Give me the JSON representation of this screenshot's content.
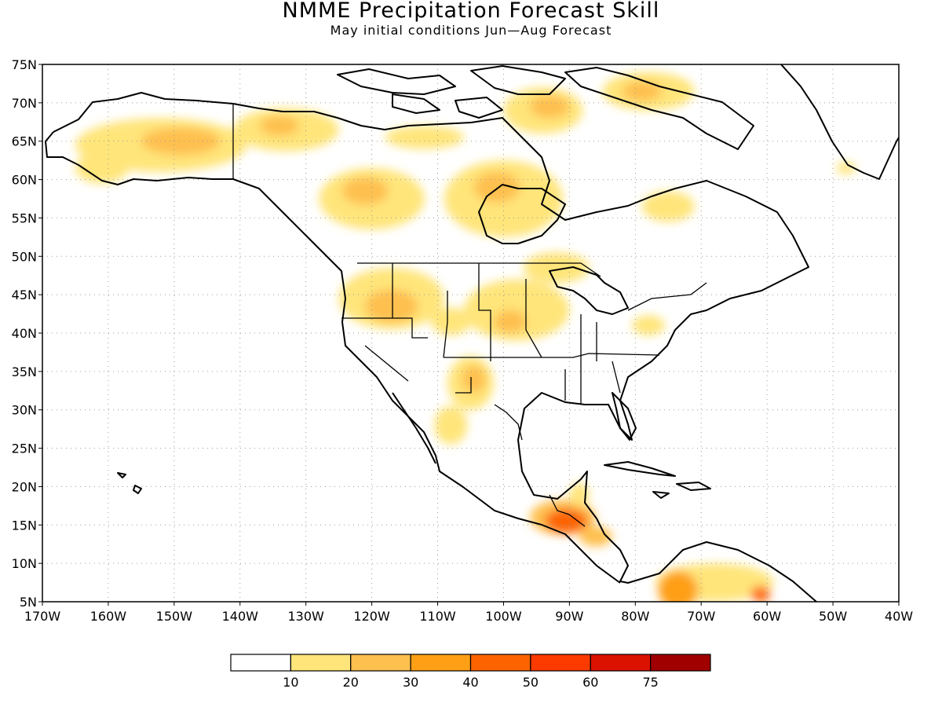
{
  "title": "NMME Precipitation Forecast Skill",
  "subtitle": "May initial conditions  Jun—Aug Forecast",
  "map": {
    "lon_range": [
      -170,
      -40
    ],
    "lat_range": [
      5,
      75
    ],
    "lat_labels": [
      "75N",
      "70N",
      "65N",
      "60N",
      "55N",
      "50N",
      "45N",
      "40N",
      "35N",
      "30N",
      "25N",
      "20N",
      "15N",
      "10N",
      "5N"
    ],
    "lon_labels": [
      "170W",
      "160W",
      "150W",
      "140W",
      "130W",
      "120W",
      "110W",
      "100W",
      "90W",
      "80W",
      "70W",
      "60W",
      "50W",
      "40W"
    ],
    "grid": "dotted",
    "coastline_color": "#000000"
  },
  "skill_regions": [
    {
      "name": "alaska-west",
      "lon": -152,
      "lat": 64.5,
      "rx": 13,
      "ry": 3.5,
      "level": 1
    },
    {
      "name": "alaska-core",
      "lon": -149,
      "lat": 65,
      "rx": 6,
      "ry": 1.8,
      "level": 2
    },
    {
      "name": "alaska-southwest",
      "lon": -161,
      "lat": 61.5,
      "rx": 4,
      "ry": 2,
      "level": 1
    },
    {
      "name": "yukon",
      "lon": -133,
      "lat": 66.5,
      "rx": 8,
      "ry": 2.8,
      "level": 1
    },
    {
      "name": "yukon-core",
      "lon": -134,
      "lat": 67,
      "rx": 3,
      "ry": 1.3,
      "level": 2
    },
    {
      "name": "nw-territories",
      "lon": -112,
      "lat": 65.5,
      "rx": 6,
      "ry": 1.5,
      "level": 1
    },
    {
      "name": "nunavut-north",
      "lon": -94,
      "lat": 69,
      "rx": 6,
      "ry": 3,
      "level": 1
    },
    {
      "name": "nunavut-north-core",
      "lon": -93,
      "lat": 69.5,
      "rx": 3,
      "ry": 1.5,
      "level": 2
    },
    {
      "name": "baffin",
      "lon": -78,
      "lat": 71.5,
      "rx": 7,
      "ry": 2.5,
      "level": 1
    },
    {
      "name": "baffin-core",
      "lon": -79,
      "lat": 71.5,
      "rx": 3,
      "ry": 1.3,
      "level": 2
    },
    {
      "name": "bc-alberta",
      "lon": -120,
      "lat": 57.5,
      "rx": 8,
      "ry": 4,
      "level": 1
    },
    {
      "name": "bc-alberta-core",
      "lon": -121,
      "lat": 58.5,
      "rx": 3.5,
      "ry": 1.8,
      "level": 2
    },
    {
      "name": "manitoba",
      "lon": -100,
      "lat": 57.5,
      "rx": 9,
      "ry": 5,
      "level": 1
    },
    {
      "name": "manitoba-core",
      "lon": -101,
      "lat": 59,
      "rx": 3.5,
      "ry": 2,
      "level": 2
    },
    {
      "name": "ontario-south",
      "lon": -92,
      "lat": 48.5,
      "rx": 5,
      "ry": 2,
      "level": 1
    },
    {
      "name": "quebec",
      "lon": -75,
      "lat": 56.5,
      "rx": 4,
      "ry": 2,
      "level": 1
    },
    {
      "name": "northwest-us",
      "lon": -117,
      "lat": 44.5,
      "rx": 8,
      "ry": 4,
      "level": 1
    },
    {
      "name": "northwest-us-core",
      "lon": -117,
      "lat": 43.5,
      "rx": 4,
      "ry": 2.2,
      "level": 2
    },
    {
      "name": "northern-plains",
      "lon": -98,
      "lat": 43,
      "rx": 8,
      "ry": 4,
      "level": 1
    },
    {
      "name": "northern-plains-core",
      "lon": -99,
      "lat": 41.5,
      "rx": 2.5,
      "ry": 1.5,
      "level": 2
    },
    {
      "name": "colorado",
      "lon": -108,
      "lat": 41.5,
      "rx": 3,
      "ry": 1.8,
      "level": 1
    },
    {
      "name": "new-mexico",
      "lon": -105,
      "lat": 33.5,
      "rx": 3.5,
      "ry": 3.5,
      "level": 1
    },
    {
      "name": "new-mexico-core",
      "lon": -104.5,
      "lat": 34,
      "rx": 1.8,
      "ry": 1.8,
      "level": 2
    },
    {
      "name": "mexico-north",
      "lon": -108,
      "lat": 28,
      "rx": 2.5,
      "ry": 2.5,
      "level": 1
    },
    {
      "name": "pennsylvania",
      "lon": -78,
      "lat": 41,
      "rx": 2.5,
      "ry": 1.3,
      "level": 1
    },
    {
      "name": "greenland",
      "lon": -48,
      "lat": 61.5,
      "rx": 1.5,
      "ry": 0.8,
      "level": 1
    },
    {
      "name": "central-america",
      "lon": -91,
      "lat": 16,
      "rx": 5,
      "ry": 2.3,
      "level": 2
    },
    {
      "name": "central-america-core",
      "lon": -90.5,
      "lat": 15.5,
      "rx": 3.2,
      "ry": 1.6,
      "level": 4
    },
    {
      "name": "yucatan",
      "lon": -88.5,
      "lat": 19,
      "rx": 1.5,
      "ry": 1.5,
      "level": 1
    },
    {
      "name": "honduras",
      "lon": -86,
      "lat": 13.5,
      "rx": 2.5,
      "ry": 1.3,
      "level": 2
    },
    {
      "name": "colombia-venezuela",
      "lon": -68,
      "lat": 7.5,
      "rx": 9,
      "ry": 2.5,
      "level": 1
    },
    {
      "name": "colombia",
      "lon": -73.5,
      "lat": 6.5,
      "rx": 3,
      "ry": 2.5,
      "level": 3
    },
    {
      "name": "venezuela-east",
      "lon": -61,
      "lat": 6,
      "rx": 1.5,
      "ry": 1,
      "level": 4
    }
  ],
  "legend": {
    "labels": [
      "10",
      "20",
      "30",
      "40",
      "50",
      "60",
      "75"
    ],
    "colors": [
      "#ffffff",
      "#ffe57a",
      "#fec04f",
      "#fe9f15",
      "#fd6400",
      "#fb3a00",
      "#dc1200",
      "#a00000"
    ]
  }
}
